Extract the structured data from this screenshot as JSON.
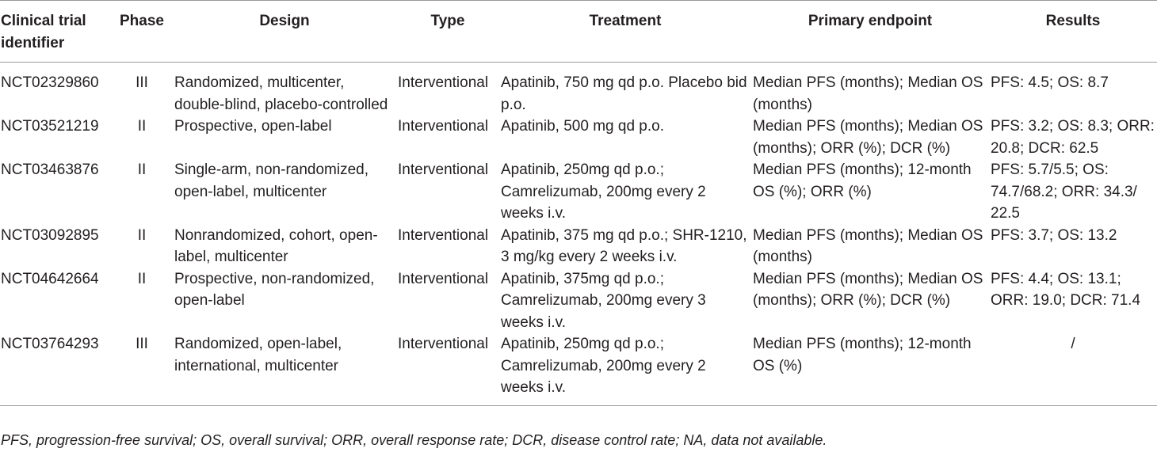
{
  "table": {
    "headers": [
      "Clinical trial identifier",
      "Phase",
      "Design",
      "Type",
      "Treatment",
      "Primary endpoint",
      "Results"
    ],
    "rows": [
      {
        "identifier": "NCT02329860",
        "phase": "III",
        "design": "Randomized, multicenter, double-blind, placebo-controlled",
        "type": "Interventional",
        "treatment": "Apatinib, 750 mg qd p.o. Placebo bid p.o.",
        "endpoint": "Median PFS (months); Median OS (months)",
        "results": "PFS: 4.5; OS: 8.7"
      },
      {
        "identifier": "NCT03521219",
        "phase": "II",
        "design": "Prospective, open-label",
        "type": "Interventional",
        "treatment": "Apatinib, 500 mg qd p.o.",
        "endpoint": "Median PFS (months); Median OS (months); ORR (%); DCR (%)",
        "results": "PFS: 3.2; OS: 8.3; ORR: 20.8; DCR: 62.5"
      },
      {
        "identifier": "NCT03463876",
        "phase": "II",
        "design": "Single-arm, non-randomized, open-label, multicenter",
        "type": "Interventional",
        "treatment": "Apatinib, 250mg qd p.o.; Camrelizumab, 200mg every 2 weeks i.v.",
        "endpoint": "Median PFS (months); 12-month OS (%); ORR (%)",
        "results": "PFS: 5.7/5.5; OS: 74.7/68.2; ORR: 34.3/ 22.5"
      },
      {
        "identifier": "NCT03092895",
        "phase": "II",
        "design": "Nonrandomized, cohort, open-label, multicenter",
        "type": "Interventional",
        "treatment": "Apatinib, 375 mg qd p.o.; SHR-1210, 3 mg/kg every 2 weeks i.v.",
        "endpoint": "Median PFS (months); Median OS (months)",
        "results": "PFS: 3.7; OS: 13.2"
      },
      {
        "identifier": "NCT04642664",
        "phase": "II",
        "design": "Prospective, non-randomized, open-label",
        "type": "Interventional",
        "treatment": "Apatinib, 375mg qd p.o.; Camrelizumab, 200mg every 3 weeks i.v.",
        "endpoint": "Median PFS (months); Median OS (months); ORR (%); DCR (%)",
        "results": "PFS: 4.4; OS: 13.1; ORR: 19.0; DCR: 71.4"
      },
      {
        "identifier": "NCT03764293",
        "phase": "III",
        "design": "Randomized, open-label, international, multicenter",
        "type": "Interventional",
        "treatment": "Apatinib, 250mg qd p.o.; Camrelizumab, 200mg every 2 weeks i.v.",
        "endpoint": "Median PFS (months); 12-month OS (%)",
        "results": "/"
      }
    ]
  },
  "footnote": "PFS, progression-free survival; OS, overall survival; ORR, overall response rate; DCR, disease control rate; NA, data not available."
}
